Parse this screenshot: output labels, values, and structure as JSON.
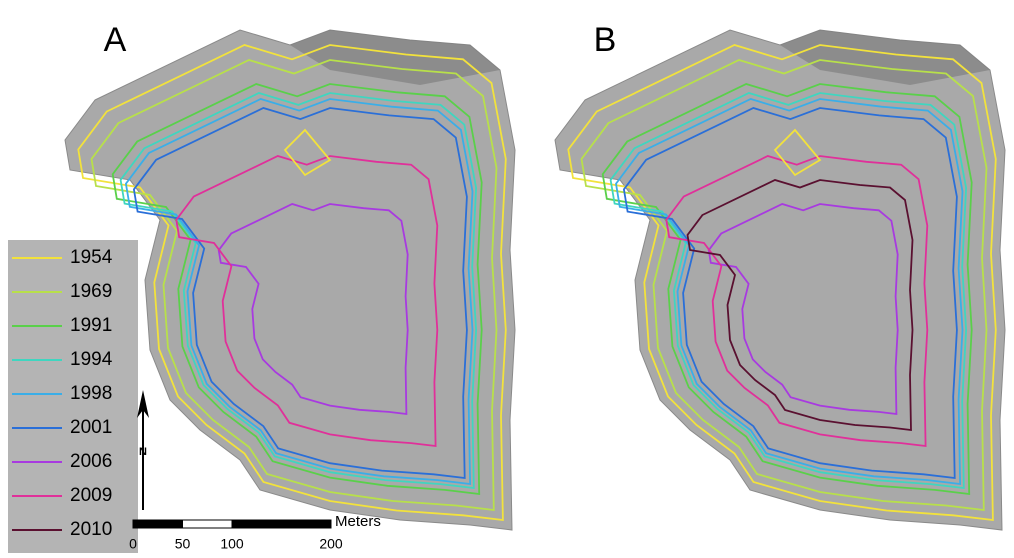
{
  "panels": [
    {
      "label": "A"
    },
    {
      "label": "B"
    }
  ],
  "legend": {
    "items": [
      {
        "label": "1954",
        "color": "#f2e23c"
      },
      {
        "label": "1969",
        "color": "#b8e04a"
      },
      {
        "label": "1991",
        "color": "#5ad04a"
      },
      {
        "label": "1994",
        "color": "#3fd6c0"
      },
      {
        "label": "1998",
        "color": "#3aaee8"
      },
      {
        "label": "2001",
        "color": "#2a6fd8"
      },
      {
        "label": "2006",
        "color": "#a83ae0"
      },
      {
        "label": "2009",
        "color": "#e0309a"
      },
      {
        "label": "2010",
        "color": "#5a1030"
      }
    ]
  },
  "north_arrow": {
    "label": "N"
  },
  "scale_bar": {
    "unit": "Meters",
    "ticks": [
      0,
      50,
      100,
      200
    ]
  }
}
